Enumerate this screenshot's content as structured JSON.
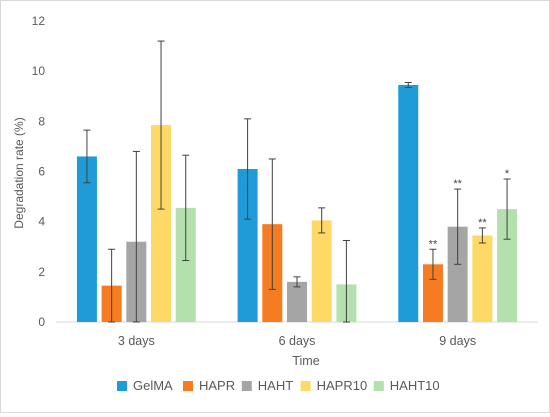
{
  "chart_data": {
    "type": "bar",
    "xlabel": "Time",
    "ylabel": "Degradation rate (%)",
    "ylim": [
      0,
      12
    ],
    "yticks": [
      0,
      2,
      4,
      6,
      8,
      10,
      12
    ],
    "grid": false,
    "legend_position": "bottom",
    "categories": [
      "3 days",
      "6 days",
      "9 days"
    ],
    "series": [
      {
        "name": "GelMA",
        "color": "#1f9bd7",
        "values": [
          6.6,
          6.1,
          9.45
        ],
        "errors": [
          1.05,
          2.0,
          0.1
        ],
        "annotations": [
          "",
          "",
          ""
        ]
      },
      {
        "name": "HAPR",
        "color": "#f57c20",
        "values": [
          1.45,
          3.9,
          2.3
        ],
        "errors": [
          1.45,
          2.6,
          0.6
        ],
        "annotations": [
          "",
          "",
          "**"
        ]
      },
      {
        "name": "HAHT",
        "color": "#a5a5a5",
        "values": [
          3.2,
          1.6,
          3.8
        ],
        "errors": [
          3.6,
          0.2,
          1.5
        ],
        "annotations": [
          "",
          "",
          "**"
        ]
      },
      {
        "name": "HAPR10",
        "color": "#ffd966",
        "values": [
          7.85,
          4.05,
          3.45
        ],
        "errors": [
          3.35,
          0.5,
          0.3
        ],
        "annotations": [
          "",
          "",
          "**"
        ]
      },
      {
        "name": "HAHT10",
        "color": "#b4e0ae",
        "values": [
          4.55,
          1.5,
          4.5
        ],
        "errors": [
          2.1,
          1.75,
          1.2
        ],
        "annotations": [
          "",
          "",
          "*"
        ]
      }
    ]
  }
}
